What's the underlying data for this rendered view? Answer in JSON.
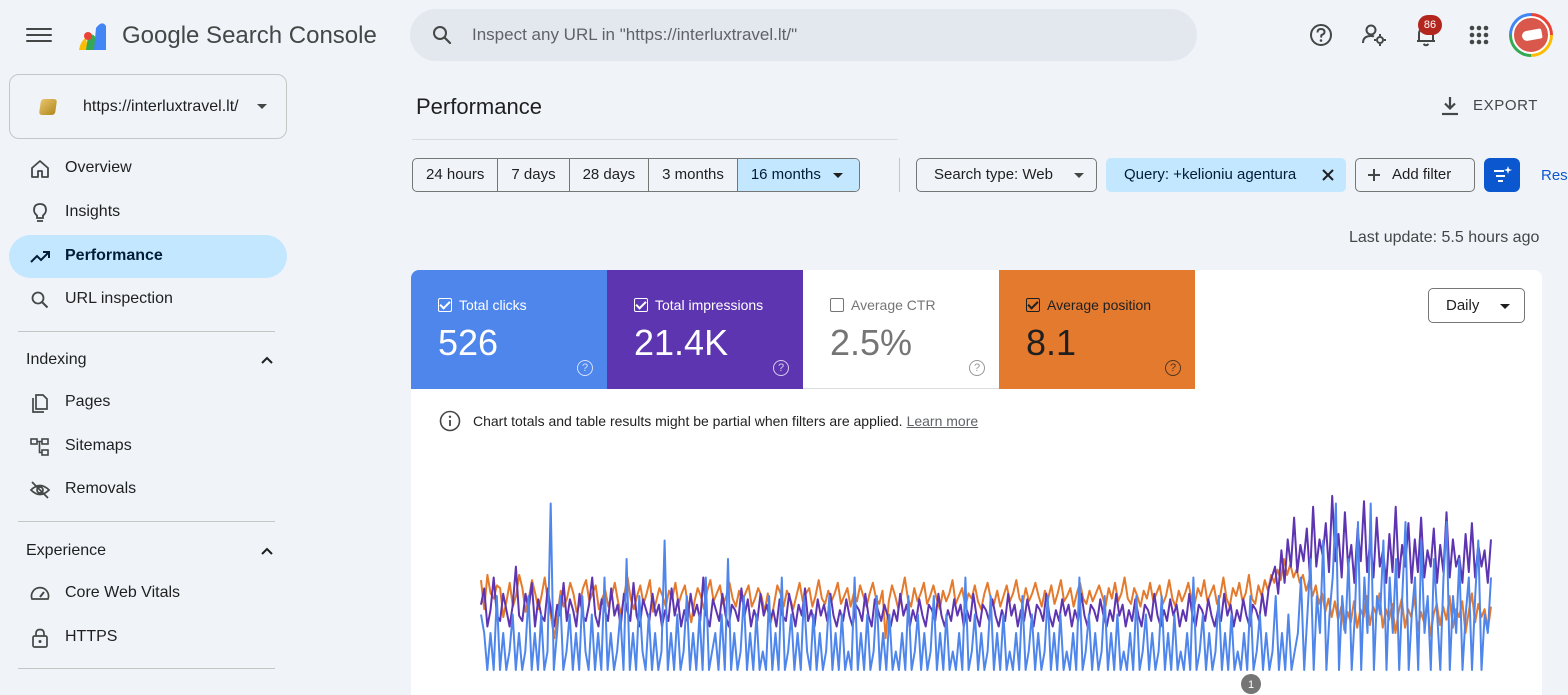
{
  "app": {
    "brand": "Google Search Console",
    "search_placeholder": "Inspect any URL in \"https://interluxtravel.lt/\"",
    "notification_count": "86"
  },
  "property": {
    "url": "https://interluxtravel.lt/"
  },
  "sidebar": {
    "items": [
      {
        "label": "Overview",
        "icon": "home-icon"
      },
      {
        "label": "Insights",
        "icon": "lightbulb-icon"
      },
      {
        "label": "Performance",
        "icon": "trending-up-icon",
        "active": true
      },
      {
        "label": "URL inspection",
        "icon": "search-icon"
      }
    ],
    "indexing": {
      "title": "Indexing",
      "items": [
        {
          "label": "Pages",
          "icon": "pages-icon"
        },
        {
          "label": "Sitemaps",
          "icon": "sitemap-icon"
        },
        {
          "label": "Removals",
          "icon": "eye-off-icon"
        }
      ]
    },
    "experience": {
      "title": "Experience",
      "items": [
        {
          "label": "Core Web Vitals",
          "icon": "speedometer-icon"
        },
        {
          "label": "HTTPS",
          "icon": "lock-icon"
        }
      ]
    }
  },
  "main": {
    "title": "Performance",
    "export_label": "EXPORT",
    "date_ranges": [
      "24 hours",
      "7 days",
      "28 days",
      "3 months",
      "16 months"
    ],
    "selected_range": "16 months",
    "search_type": "Search type: Web",
    "query_filter": "Query: +kelioniu agentura",
    "add_filter": "Add filter",
    "reset_label": "Res",
    "last_update": "Last update: 5.5 hours ago",
    "granularity": "Daily",
    "note": "Chart totals and table results might be partial when filters are applied.",
    "note_link": "Learn more"
  },
  "metrics": [
    {
      "label": "Total clicks",
      "value": "526",
      "checked": true,
      "color": "#4f86ec"
    },
    {
      "label": "Total impressions",
      "value": "21.4K",
      "checked": true,
      "color": "#5e35b1"
    },
    {
      "label": "Average CTR",
      "value": "2.5%",
      "checked": false,
      "color": "#ffffff"
    },
    {
      "label": "Average position",
      "value": "8.1",
      "checked": true,
      "color": "#e37a2e"
    }
  ],
  "chart_data": {
    "type": "line",
    "annotation": "1",
    "series": [
      {
        "color": "#e37a2e",
        "values": [
          9.4,
          8.3,
          9.6,
          8.9,
          8.7,
          9.2,
          9.1,
          8.0,
          8.6,
          9.3,
          8.4,
          8.8,
          9.6,
          9.1,
          8.2,
          8.7,
          9.4,
          8.9,
          8.3,
          8.8,
          9.5,
          8.6,
          8.0,
          7.2,
          8.1,
          9.0,
          8.4,
          8.7,
          9.3,
          8.9,
          8.2,
          8.5,
          9.1,
          9.4,
          8.6,
          8.9,
          9.2,
          8.3,
          8.7,
          9.0,
          8.4,
          8.8,
          9.3,
          8.6,
          8.1,
          8.9,
          9.5,
          8.7,
          8.3,
          8.8,
          9.2,
          8.5,
          8.9,
          9.4,
          8.2,
          8.6,
          9.1,
          8.8,
          8.4,
          9.0,
          8.7,
          9.3,
          8.5,
          8.9,
          9.2,
          8.4,
          7.8,
          8.6,
          9.1,
          8.8,
          8.3,
          9.0,
          9.4,
          8.6,
          8.9,
          9.2,
          8.5,
          8.8,
          9.3,
          8.7,
          8.4,
          9.0,
          8.6,
          8.9,
          9.2,
          8.4,
          8.7,
          9.1,
          8.8,
          8.2,
          8.9,
          7.8,
          8.5,
          9.2,
          8.9,
          8.4,
          9.0,
          8.7,
          8.3,
          8.8,
          9.3,
          8.6,
          8.9,
          9.1,
          8.4,
          8.8,
          9.4,
          8.7,
          8.5,
          9.0,
          8.6,
          8.9,
          9.3,
          8.5,
          8.8,
          9.1,
          8.4,
          8.9,
          8.6,
          9.2,
          8.8,
          8.4,
          8.9,
          9.3,
          8.7,
          8.5,
          9.0,
          7.2,
          8.6,
          9.2,
          8.8,
          8.3,
          8.9,
          9.5,
          8.7,
          8.4,
          9.1,
          8.6,
          8.9,
          9.3,
          8.5,
          8.8,
          9.2,
          8.7,
          8.3,
          9.0,
          8.6,
          8.9,
          9.4,
          8.5,
          8.8,
          9.1,
          8.4,
          8.9,
          8.7,
          9.2,
          8.6,
          8.3,
          8.9,
          9.3,
          8.7,
          8.5,
          9.0,
          8.4,
          8.8,
          9.2,
          8.6,
          8.9,
          9.4,
          8.7,
          8.5,
          9.1,
          8.6,
          8.9,
          9.3,
          8.8,
          8.4,
          9.0,
          8.7,
          9.2,
          8.5,
          8.9,
          9.4,
          8.6,
          8.8,
          9.1,
          8.4,
          8.9,
          9.3,
          8.7,
          8.5,
          9.0,
          8.6,
          8.9,
          9.2,
          8.8,
          8.4,
          9.1,
          8.7,
          9.3,
          8.6,
          8.9,
          9.5,
          8.7,
          8.5,
          9.1,
          8.8,
          8.4,
          9.0,
          8.7,
          9.3,
          8.6,
          8.9,
          9.2,
          8.5,
          8.8,
          9.4,
          8.7,
          8.4,
          9.0,
          8.6,
          8.9,
          9.3,
          8.7,
          8.5,
          9.1,
          8.8,
          9.4,
          8.6,
          8.9,
          9.2,
          8.5,
          8.8,
          9.5,
          8.7,
          8.4,
          9.1,
          8.8,
          9.3,
          8.6,
          8.9,
          9.6,
          8.7,
          8.5,
          9.2,
          8.8,
          9.4,
          9.0,
          9.6,
          9.3,
          9.8,
          9.4,
          10.2,
          9.6,
          10.0,
          9.5,
          9.8,
          9.3,
          9.6,
          9.0,
          9.4,
          8.8,
          9.2,
          8.5,
          8.9,
          8.2,
          8.7,
          8.0,
          8.6,
          7.9,
          8.4,
          7.5,
          8.2,
          7.8,
          8.6,
          7.6,
          8.3,
          8.0,
          8.8,
          7.7,
          8.4,
          8.1,
          8.9,
          7.6,
          8.3,
          7.9,
          8.5,
          7.4,
          8.2,
          8.7,
          7.6,
          8.3,
          8.0,
          8.8,
          7.5,
          8.2,
          7.8,
          8.6,
          7.3,
          8.1,
          8.5,
          7.7,
          8.4,
          7.9,
          8.8,
          7.6,
          8.3,
          8.0,
          8.6,
          7.4,
          8.2,
          8.9,
          7.8,
          8.5,
          8.0,
          8.3,
          7.5,
          8.4
        ]
      },
      {
        "color": "#5e35b1",
        "values": [
          60,
          75,
          40,
          55,
          85,
          50,
          45,
          70,
          55,
          40,
          60,
          95,
          50,
          45,
          70,
          55,
          80,
          40,
          65,
          50,
          45,
          75,
          55,
          40,
          60,
          50,
          80,
          45,
          65,
          55,
          40,
          70,
          50,
          45,
          60,
          85,
          50,
          40,
          65,
          55,
          45,
          75,
          50,
          60,
          40,
          70,
          55,
          45,
          80,
          50,
          40,
          65,
          55,
          45,
          70,
          50,
          60,
          40,
          55,
          45,
          75,
          50,
          65,
          40,
          55,
          45,
          70,
          50,
          60,
          45,
          85,
          50,
          40,
          65,
          55,
          45,
          70,
          50,
          40,
          60,
          55,
          45,
          75,
          50,
          65,
          40,
          55,
          45,
          70,
          50,
          60,
          45,
          55,
          40,
          65,
          50,
          45,
          70,
          55,
          40,
          60,
          50,
          75,
          45,
          55,
          40,
          65,
          50,
          60,
          45,
          70,
          50,
          40,
          55,
          45,
          65,
          50,
          40,
          60,
          55,
          45,
          70,
          50,
          40,
          65,
          55,
          45,
          60,
          50,
          40,
          55,
          45,
          70,
          50,
          60,
          40,
          55,
          45,
          65,
          50,
          40,
          60,
          55,
          45,
          70,
          50,
          40,
          55,
          45,
          65,
          50,
          60,
          40,
          55,
          45,
          70,
          50,
          40,
          60,
          55,
          45,
          65,
          50,
          40,
          55,
          45,
          70,
          50,
          60,
          40,
          55,
          45,
          65,
          50,
          40,
          60,
          55,
          45,
          70,
          50,
          40,
          55,
          45,
          65,
          50,
          60,
          40,
          55,
          45,
          70,
          50,
          40,
          60,
          55,
          45,
          65,
          50,
          40,
          55,
          45,
          70,
          50,
          60,
          40,
          55,
          45,
          65,
          50,
          40,
          60,
          55,
          45,
          70,
          50,
          40,
          55,
          45,
          65,
          50,
          60,
          40,
          55,
          45,
          70,
          50,
          40,
          60,
          55,
          45,
          65,
          50,
          40,
          55,
          45,
          70,
          50,
          60,
          40,
          55,
          45,
          65,
          50,
          40,
          60,
          55,
          45,
          70,
          50,
          75,
          85,
          95,
          70,
          110,
          80,
          120,
          95,
          140,
          90,
          115,
          100,
          130,
          85,
          150,
          95,
          120,
          105,
          135,
          90,
          160,
          100,
          125,
          85,
          145,
          95,
          115,
          80,
          130,
          100,
          155,
          90,
          120,
          85,
          140,
          95,
          110,
          80,
          125,
          90,
          150,
          85,
          115,
          95,
          135,
          80,
          120,
          90,
          140,
          85,
          110,
          95,
          130,
          80,
          115,
          90,
          145,
          85,
          120,
          95,
          105,
          80,
          125,
          90,
          135,
          85,
          115,
          95,
          110,
          80,
          120
        ]
      },
      {
        "color": "#4f86ec",
        "values": [
          3,
          2,
          0,
          2,
          0,
          4,
          0,
          2,
          0,
          1,
          3,
          0,
          2,
          0,
          1,
          4,
          0,
          2,
          0,
          3,
          0,
          1,
          9,
          0,
          2,
          4,
          0,
          1,
          3,
          0,
          2,
          0,
          4,
          1,
          0,
          3,
          0,
          2,
          0,
          5,
          0,
          2,
          0,
          1,
          3,
          0,
          6,
          0,
          2,
          0,
          4,
          1,
          0,
          3,
          0,
          2,
          0,
          1,
          7,
          0,
          2,
          0,
          3,
          0,
          1,
          4,
          0,
          2,
          0,
          3,
          0,
          5,
          0,
          1,
          2,
          0,
          3,
          0,
          6,
          0,
          2,
          0,
          1,
          4,
          0,
          2,
          0,
          3,
          0,
          1,
          0,
          4,
          0,
          2,
          0,
          5,
          0,
          1,
          3,
          0,
          2,
          0,
          4,
          1,
          0,
          3,
          0,
          2,
          0,
          1,
          4,
          0,
          2,
          0,
          3,
          0,
          1,
          0,
          5,
          0,
          2,
          0,
          3,
          0,
          1,
          4,
          0,
          2,
          0,
          3,
          0,
          1,
          0,
          2,
          0,
          4,
          0,
          1,
          3,
          0,
          2,
          0,
          1,
          4,
          0,
          2,
          0,
          3,
          0,
          1,
          0,
          2,
          0,
          5,
          0,
          1,
          3,
          0,
          2,
          0,
          1,
          4,
          0,
          2,
          0,
          3,
          0,
          1,
          0,
          2,
          0,
          4,
          0,
          1,
          3,
          0,
          2,
          0,
          1,
          4,
          0,
          2,
          0,
          3,
          0,
          1,
          0,
          2,
          0,
          5,
          0,
          1,
          3,
          0,
          2,
          0,
          1,
          4,
          0,
          2,
          0,
          3,
          0,
          1,
          0,
          2,
          0,
          4,
          0,
          1,
          3,
          0,
          2,
          0,
          1,
          4,
          0,
          2,
          0,
          3,
          0,
          1,
          0,
          2,
          0,
          5,
          0,
          1,
          3,
          0,
          2,
          0,
          1,
          4,
          0,
          2,
          0,
          3,
          0,
          1,
          0,
          2,
          0,
          4,
          0,
          1,
          3,
          0,
          2,
          0,
          1,
          4,
          0,
          2,
          0,
          3,
          0,
          1,
          2,
          5,
          0,
          3,
          6,
          0,
          4,
          2,
          7,
          0,
          3,
          5,
          9,
          0,
          4,
          2,
          6,
          0,
          3,
          8,
          0,
          5,
          2,
          9,
          0,
          4,
          3,
          7,
          0,
          5,
          2,
          6,
          0,
          4,
          8,
          0,
          3,
          5,
          0,
          7,
          2,
          4,
          0,
          6,
          3,
          0,
          5,
          8,
          0,
          4,
          2,
          6,
          0,
          3,
          5,
          0,
          4,
          7,
          0,
          3,
          2,
          5
        ]
      }
    ]
  }
}
